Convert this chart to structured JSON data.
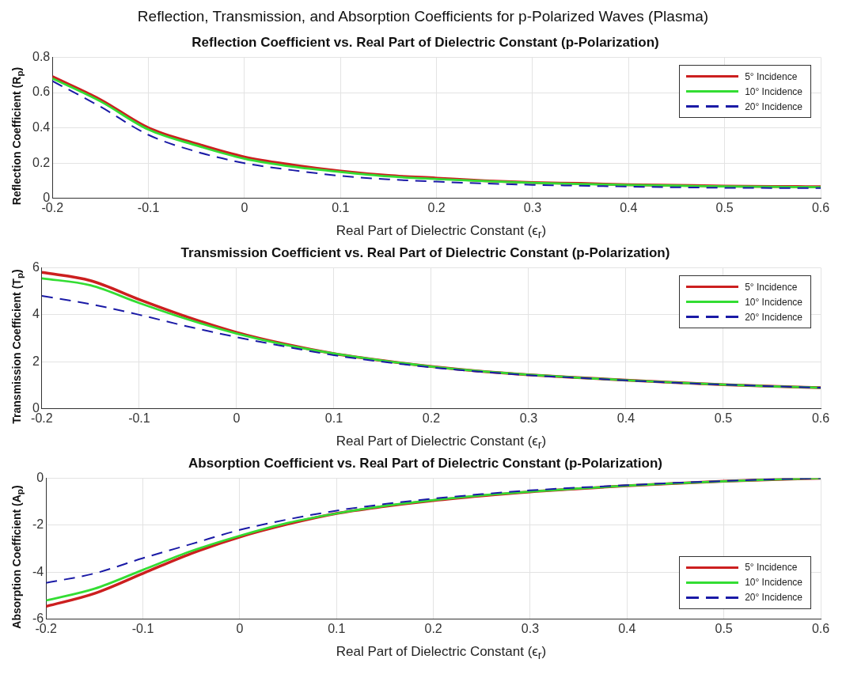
{
  "chart_data": [
    {
      "type": "other",
      "title": "Reflection, Transmission, and Absorption Coefficients for p-Polarized Waves (Plasma)"
    },
    {
      "type": "line",
      "title": "Reflection Coefficient vs. Real Part of Dielectric Constant (p-Polarization)",
      "xlabel": "Real Part of Dielectric Constant (ϵ$_{r}$)",
      "ylabel": "Reflection Coefficient (R$_{p}$)",
      "x": [
        -0.2,
        -0.15,
        -0.1,
        -0.05,
        0,
        0.05,
        0.1,
        0.15,
        0.2,
        0.25,
        0.3,
        0.35,
        0.4,
        0.45,
        0.5,
        0.55,
        0.6
      ],
      "series": [
        {
          "name": "5° Incidence",
          "color": "#cc1f1f",
          "values": [
            0.69,
            0.56,
            0.4,
            0.31,
            0.235,
            0.19,
            0.155,
            0.13,
            0.115,
            0.1,
            0.09,
            0.085,
            0.078,
            0.074,
            0.07,
            0.068,
            0.066
          ]
        },
        {
          "name": "10° Incidence",
          "color": "#33dd33",
          "values": [
            0.68,
            0.55,
            0.39,
            0.3,
            0.225,
            0.18,
            0.15,
            0.125,
            0.11,
            0.098,
            0.088,
            0.082,
            0.076,
            0.072,
            0.068,
            0.066,
            0.064
          ]
        },
        {
          "name": "20° Incidence",
          "color": "#1a1aa6",
          "line_style": "dashed",
          "values": [
            0.665,
            0.52,
            0.36,
            0.265,
            0.2,
            0.16,
            0.128,
            0.108,
            0.095,
            0.085,
            0.077,
            0.072,
            0.067,
            0.063,
            0.06,
            0.059,
            0.058
          ]
        }
      ],
      "xlim": [
        -0.2,
        0.6
      ],
      "xticks": [
        -0.2,
        -0.1,
        0,
        0.1,
        0.2,
        0.3,
        0.4,
        0.5,
        0.6
      ],
      "ylim": [
        0,
        0.8
      ],
      "yticks": [
        0,
        0.2,
        0.4,
        0.6,
        0.8
      ],
      "grid": true,
      "legend": "top right"
    },
    {
      "type": "line",
      "title": "Transmission Coefficient vs. Real Part of Dielectric Constant (p-Polarization)",
      "xlabel": "Real Part of Dielectric Constant (ϵ$_{r}$)",
      "ylabel": "Transmission Coefficient (T$_{p}$)",
      "x": [
        -0.2,
        -0.15,
        -0.1,
        -0.05,
        0,
        0.05,
        0.1,
        0.15,
        0.2,
        0.25,
        0.3,
        0.35,
        0.4,
        0.45,
        0.5,
        0.55,
        0.6
      ],
      "series": [
        {
          "name": "5° Incidence",
          "color": "#cc1f1f",
          "values": [
            5.8,
            5.45,
            4.65,
            3.9,
            3.25,
            2.75,
            2.35,
            2.05,
            1.8,
            1.6,
            1.45,
            1.33,
            1.22,
            1.12,
            1.03,
            0.96,
            0.9
          ]
        },
        {
          "name": "10° Incidence",
          "color": "#33dd33",
          "values": [
            5.55,
            5.25,
            4.5,
            3.8,
            3.2,
            2.72,
            2.35,
            2.05,
            1.8,
            1.6,
            1.45,
            1.33,
            1.22,
            1.12,
            1.03,
            0.96,
            0.9
          ]
        },
        {
          "name": "20° Incidence",
          "color": "#1a1aa6",
          "line_style": "dashed",
          "values": [
            4.8,
            4.45,
            4.0,
            3.5,
            3.05,
            2.65,
            2.28,
            2.0,
            1.76,
            1.58,
            1.43,
            1.32,
            1.21,
            1.11,
            1.03,
            0.96,
            0.9
          ]
        }
      ],
      "xlim": [
        -0.2,
        0.6
      ],
      "xticks": [
        -0.2,
        -0.1,
        0,
        0.1,
        0.2,
        0.3,
        0.4,
        0.5,
        0.6
      ],
      "ylim": [
        0,
        6
      ],
      "yticks": [
        0,
        2,
        4,
        6
      ],
      "grid": true,
      "legend": "top right"
    },
    {
      "type": "line",
      "title": "Absorption Coefficient vs. Real Part of Dielectric Constant (p-Polarization)",
      "xlabel": "Real Part of Dielectric Constant (ϵ$_{r}$)",
      "ylabel": "Absorption Coefficient (A$_{p}$)",
      "x": [
        -0.2,
        -0.15,
        -0.1,
        -0.05,
        0,
        0.05,
        0.1,
        0.15,
        0.2,
        0.25,
        0.3,
        0.35,
        0.4,
        0.45,
        0.5,
        0.55,
        0.6
      ],
      "series": [
        {
          "name": "5° Incidence",
          "color": "#cc1f1f",
          "values": [
            -5.45,
            -4.9,
            -4.05,
            -3.2,
            -2.5,
            -1.95,
            -1.5,
            -1.2,
            -0.95,
            -0.75,
            -0.58,
            -0.45,
            -0.32,
            -0.22,
            -0.13,
            -0.06,
            0.0
          ]
        },
        {
          "name": "10° Incidence",
          "color": "#33dd33",
          "values": [
            -5.2,
            -4.7,
            -3.9,
            -3.1,
            -2.45,
            -1.9,
            -1.5,
            -1.18,
            -0.93,
            -0.73,
            -0.57,
            -0.44,
            -0.32,
            -0.22,
            -0.13,
            -0.06,
            0.0
          ]
        },
        {
          "name": "20° Incidence",
          "color": "#1a1aa6",
          "line_style": "dashed",
          "values": [
            -4.45,
            -4.05,
            -3.4,
            -2.8,
            -2.2,
            -1.75,
            -1.38,
            -1.1,
            -0.87,
            -0.68,
            -0.52,
            -0.4,
            -0.3,
            -0.2,
            -0.12,
            -0.05,
            0
          ]
        }
      ],
      "xlim": [
        -0.2,
        0.6
      ],
      "xticks": [
        -0.2,
        -0.1,
        0,
        0.1,
        0.2,
        0.3,
        0.4,
        0.5,
        0.6
      ],
      "ylim": [
        -6,
        0
      ],
      "yticks": [
        -6,
        -4,
        -2,
        0
      ],
      "grid": true,
      "legend": "bottom right"
    }
  ]
}
